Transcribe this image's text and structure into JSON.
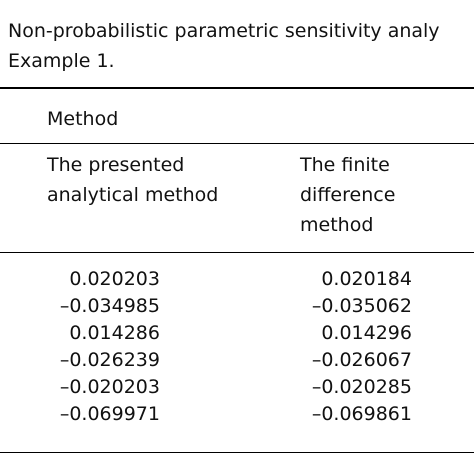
{
  "caption": {
    "lines": [
      "Non-probabilistic parametric sensitivity analy",
      "Example 1."
    ]
  },
  "table": {
    "group_header": "Method",
    "columns": [
      {
        "lines": [
          "The presented",
          "analytical method"
        ]
      },
      {
        "lines": [
          "The finite",
          "difference",
          "method"
        ]
      }
    ],
    "rows": [
      [
        "0.020203",
        "0.020184"
      ],
      [
        "–0.034985",
        "–0.035062"
      ],
      [
        "0.014286",
        "0.014296"
      ],
      [
        "–0.026239",
        "–0.026067"
      ],
      [
        "–0.020203",
        "–0.020285"
      ],
      [
        "–0.069971",
        "–0.069861"
      ]
    ]
  }
}
